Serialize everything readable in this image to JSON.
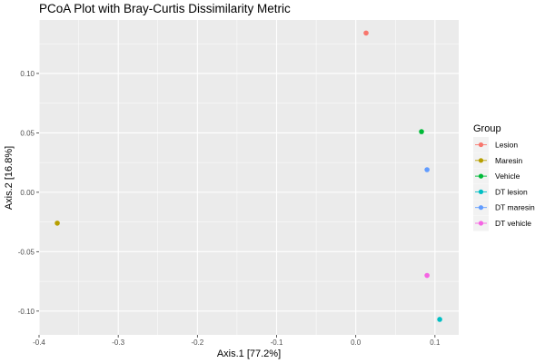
{
  "chart_data": {
    "type": "scatter",
    "title": "PCoA Plot with Bray-Curtis Dissimilarity Metric",
    "xlabel": "Axis.1   [77.2%]",
    "ylabel": "Axis.2   [16.8%]",
    "xlim": [
      -0.4,
      0.13
    ],
    "ylim": [
      -0.12,
      0.145
    ],
    "x_ticks": [
      -0.4,
      -0.3,
      -0.2,
      -0.1,
      0.0,
      0.1
    ],
    "x_tick_labels": [
      "-0.4",
      "-0.3",
      "-0.2",
      "-0.1",
      "0.0",
      "0.1"
    ],
    "y_ticks": [
      -0.1,
      -0.05,
      0.0,
      0.05,
      0.1
    ],
    "y_tick_labels": [
      "-0.10",
      "-0.05",
      "0.00",
      "0.05",
      "0.10"
    ],
    "grid": true,
    "legend": {
      "title": "Group",
      "placement": "right"
    },
    "series": [
      {
        "name": "Lesion",
        "color": "#F8766D",
        "points": [
          {
            "x": 0.013,
            "y": 0.134
          }
        ]
      },
      {
        "name": "Maresin",
        "color": "#B79F00",
        "points": [
          {
            "x": -0.377,
            "y": -0.026
          }
        ]
      },
      {
        "name": "Vehicle",
        "color": "#00BA38",
        "points": [
          {
            "x": 0.083,
            "y": 0.051
          }
        ]
      },
      {
        "name": "DT lesion",
        "color": "#00BFC4",
        "points": [
          {
            "x": 0.106,
            "y": -0.107
          }
        ]
      },
      {
        "name": "DT maresin",
        "color": "#619CFF",
        "points": [
          {
            "x": 0.09,
            "y": 0.019
          }
        ]
      },
      {
        "name": "DT vehicle",
        "color": "#F564E3",
        "points": [
          {
            "x": 0.09,
            "y": -0.07
          }
        ]
      }
    ]
  }
}
